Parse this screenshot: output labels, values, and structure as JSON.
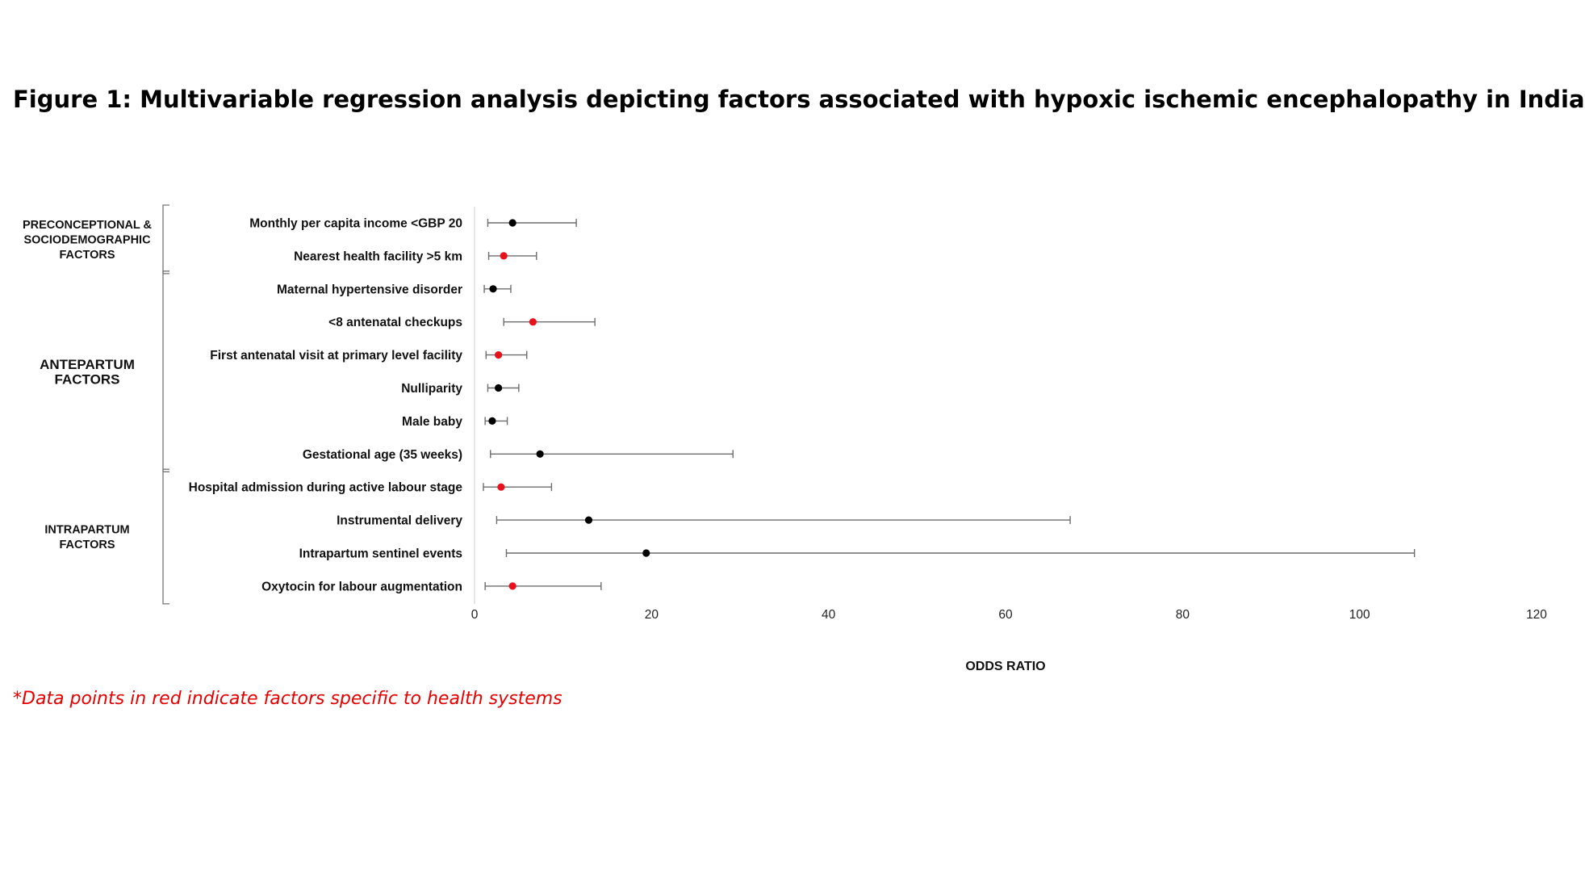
{
  "title": "Figure 1: Multivariable regression analysis depicting factors associated with hypoxic ischemic encephalopathy in India",
  "footnote": "*Data points in red indicate factors specific to health systems",
  "colors": {
    "health_system_point": "#e8101a",
    "other_point": "#000000",
    "whisker": "#6d6d6d",
    "footnote": "#e60000"
  },
  "chart_data": {
    "type": "scatter",
    "title": "",
    "xlabel": "ODDS RATIO",
    "ylabel": "",
    "xlim": [
      0,
      120
    ],
    "xticks": [
      0,
      20,
      40,
      60,
      80,
      100,
      120
    ],
    "grid": false,
    "groups": [
      {
        "lines": [
          "PRECONCEPTIONAL &",
          "SOCIODEMOGRAPHIC",
          "FACTORS"
        ],
        "rows": [
          0,
          1
        ]
      },
      {
        "lines": [
          "ANTEPARTUM",
          "FACTORS"
        ],
        "rows": [
          2,
          3,
          4,
          5,
          6,
          7
        ]
      },
      {
        "lines": [
          "INTRAPARTUM",
          "FACTORS"
        ],
        "rows": [
          8,
          9,
          10,
          11
        ]
      }
    ],
    "rows": [
      {
        "label": "Monthly per capita income <GBP 20",
        "or": 4.3,
        "lower": 1.5,
        "upper": 11.5,
        "health_system": false
      },
      {
        "label": "Nearest health facility >5 km",
        "or": 3.3,
        "lower": 1.6,
        "upper": 7.0,
        "health_system": true
      },
      {
        "label": "Maternal hypertensive disorder",
        "or": 2.1,
        "lower": 1.1,
        "upper": 4.1,
        "health_system": false
      },
      {
        "label": "<8  antenatal checkups",
        "or": 6.6,
        "lower": 3.3,
        "upper": 13.6,
        "health_system": true
      },
      {
        "label": "First antenatal visit at primary level facility",
        "or": 2.7,
        "lower": 1.3,
        "upper": 5.9,
        "health_system": true
      },
      {
        "label": "Nulliparity",
        "or": 2.7,
        "lower": 1.5,
        "upper": 5.0,
        "health_system": false
      },
      {
        "label": "Male baby",
        "or": 2.0,
        "lower": 1.2,
        "upper": 3.7,
        "health_system": false
      },
      {
        "label": "Gestational age (35 weeks)",
        "or": 7.4,
        "lower": 1.8,
        "upper": 29.2,
        "health_system": false
      },
      {
        "label": "Hospital admission during active labour stage",
        "or": 3.0,
        "lower": 1.0,
        "upper": 8.7,
        "health_system": true
      },
      {
        "label": "Instrumental delivery",
        "or": 12.9,
        "lower": 2.5,
        "upper": 67.3,
        "health_system": false
      },
      {
        "label": "Intrapartum sentinel events",
        "or": 19.4,
        "lower": 3.6,
        "upper": 106.2,
        "health_system": false
      },
      {
        "label": "Oxytocin for labour augmentation",
        "or": 4.3,
        "lower": 1.2,
        "upper": 14.3,
        "health_system": true
      }
    ]
  }
}
